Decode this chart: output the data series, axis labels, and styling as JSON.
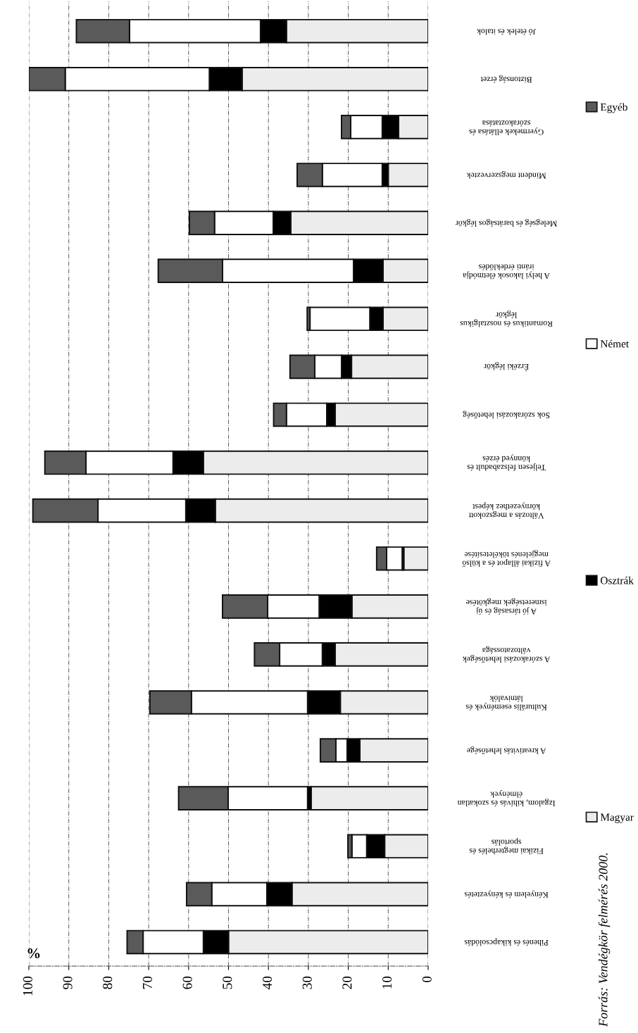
{
  "chart_data": {
    "type": "bar",
    "orientation": "horizontal",
    "stacked": true,
    "xlabel": "%",
    "categories": [
      "Jó ételek és italok",
      "Biztonság érzet",
      "Gyermekek ellátása és\nszórakoztatása",
      "Mindent megszerveztek",
      "Melegség és barátságos légkör",
      "A helyi lakosok életmódja\niránti érdeklődés",
      "Romantikus és nosztalgikus\nlégkör",
      "Érzéki légkör",
      "Sok szórakozási lehetőség",
      "Teljesen felszabadult és\nkönnyed érzés",
      "Változás a megszokott\nkörnyezethez képest",
      "A fizikai állapot és a külső\nmegjelenés tökéletesítése",
      "A jó társaság és új\nismeretségek megkötése",
      "A szórakozási lehetőségek\nváltozatossága",
      "Kulturális események és\nlátnivalók",
      "A kreativitás lehetősége",
      "Izgalom, kihívás és szokatlan\nélmények",
      "Fizikai megterhelés és\nsportolás",
      "Kényelem és kényeztetés",
      "Pihenés és kikapcsolódás"
    ],
    "series": [
      {
        "name": "Magyar",
        "color": "#ececec",
        "values": [
          35.5,
          46.6,
          7.4,
          10.0,
          34.4,
          11.3,
          11.3,
          19.2,
          23.3,
          56.3,
          53.3,
          6.1,
          19.1,
          23.3,
          22.0,
          17.1,
          29.3,
          10.9,
          34.1,
          50.0
        ]
      },
      {
        "name": "Osztrák",
        "color": "#000000",
        "values": [
          6.5,
          8.2,
          4.1,
          1.5,
          4.4,
          7.4,
          3.3,
          2.5,
          2.1,
          7.6,
          7.4,
          0.4,
          8.2,
          3.2,
          8.2,
          3.2,
          0.9,
          4.5,
          6.3,
          6.3
        ]
      },
      {
        "name": "Német",
        "color": "#ffffff",
        "values": [
          32.8,
          36.1,
          7.9,
          15.0,
          14.7,
          32.8,
          15.0,
          6.7,
          10.1,
          21.8,
          22.0,
          3.9,
          12.9,
          10.7,
          29.1,
          2.8,
          19.9,
          3.7,
          13.8,
          15.1
        ]
      },
      {
        "name": "Egyéb",
        "color": "#5a5a5a",
        "values": [
          13.3,
          9.1,
          2.3,
          6.3,
          6.3,
          16.1,
          0.7,
          6.2,
          3.2,
          10.3,
          16.3,
          2.5,
          11.3,
          6.3,
          10.4,
          3.9,
          12.4,
          1.0,
          6.3,
          4.0
        ]
      }
    ],
    "xlim": [
      100,
      0
    ],
    "xticks": [
      100,
      90,
      80,
      70,
      60,
      50,
      40,
      30,
      20,
      10,
      0
    ],
    "grid": "x",
    "legend": "right",
    "annotations": [
      "Forrás: Vendégkör felmérés 2000."
    ]
  }
}
